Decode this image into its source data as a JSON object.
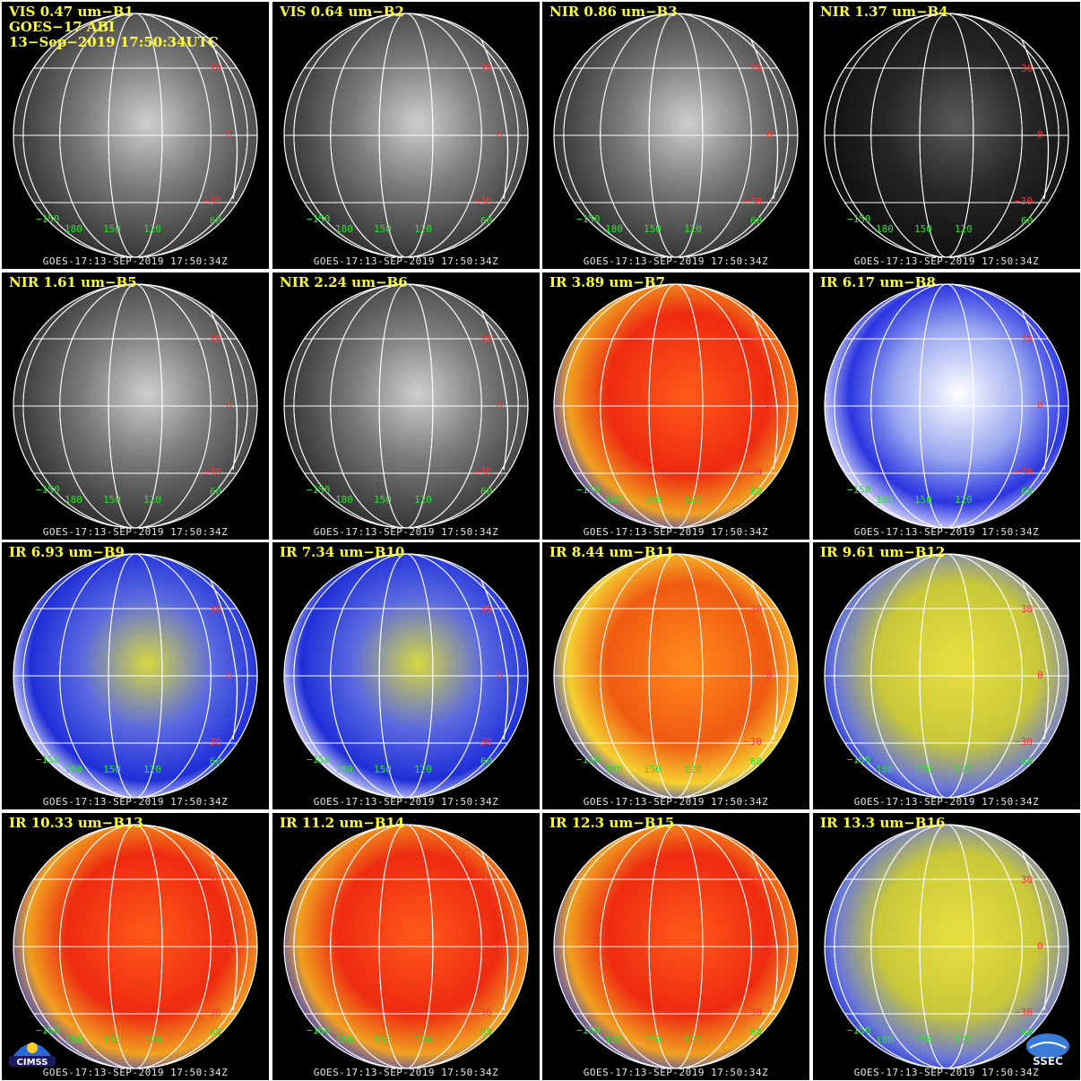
{
  "header": {
    "satellite": "GOES−17 ABI",
    "datetime": "13−Sep−2019 17:50:34UTC"
  },
  "footer_text": "GOES-17:13-SEP-2019 17:50:34Z",
  "grid_labels": {
    "lat": [
      "30",
      "0",
      "−30"
    ],
    "lon": [
      "−150",
      "180",
      "150",
      "120",
      "60"
    ]
  },
  "colors": {
    "title": "#ffff33",
    "lat_label": "#ff3030",
    "lon_label": "#30e030",
    "gridline": "#ffffff"
  },
  "panels": [
    {
      "title": "VIS 0.47 um−B1",
      "style": "vis"
    },
    {
      "title": "VIS 0.64 um−B2",
      "style": "vis"
    },
    {
      "title": "NIR 0.86 um−B3",
      "style": "vis"
    },
    {
      "title": "NIR 1.37 um−B4",
      "style": "dark"
    },
    {
      "title": "NIR 1.61 um−B5",
      "style": "vis"
    },
    {
      "title": "NIR 2.24 um−B6",
      "style": "vis"
    },
    {
      "title": "IR 3.89 um−B7",
      "style": "red"
    },
    {
      "title": "IR 6.17 um−B8",
      "style": "wv"
    },
    {
      "title": "IR 6.93 um−B9",
      "style": "wvy"
    },
    {
      "title": "IR 7.34 um−B10",
      "style": "wvy"
    },
    {
      "title": "IR 8.44 um−B11",
      "style": "orange"
    },
    {
      "title": "IR 9.61 um−B12",
      "style": "yellow"
    },
    {
      "title": "IR 10.33 um−B13",
      "style": "red"
    },
    {
      "title": "IR 11.2 um−B14",
      "style": "red"
    },
    {
      "title": "IR 12.3 um−B15",
      "style": "red"
    },
    {
      "title": "IR 13.3 um−B16",
      "style": "yellow"
    }
  ],
  "logos": {
    "left": "CIMSS",
    "right": "SSEC"
  }
}
